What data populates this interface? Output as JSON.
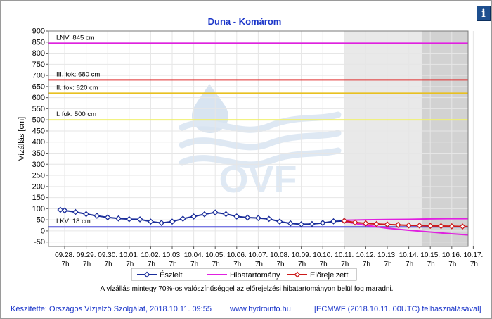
{
  "info_icon": "info-icon",
  "note": "A vízállás mintegy 70%-os valószínűséggel az előrejelzési hibatartományon belül fog maradni.",
  "footer": {
    "author": "Készítette: Országos Vízjelző Szolgálat, 2018.10.11. 09:55",
    "url": "www.hydroinfo.hu",
    "model": "[ECMWF (2018.10.11. 00UTC) felhasználásával]"
  },
  "watermark": "OVF",
  "chart_data": {
    "type": "line",
    "title": "Duna - Komárom",
    "ylabel": "Vízállás [cm]",
    "xlabel": "",
    "ylim": [
      -70,
      900
    ],
    "yticks": [
      -50,
      0,
      50,
      100,
      150,
      200,
      250,
      300,
      350,
      400,
      450,
      500,
      550,
      600,
      650,
      700,
      750,
      800,
      850,
      900
    ],
    "x_ticks": [
      {
        "date": "09.28.",
        "time": "7h"
      },
      {
        "date": "09.29.",
        "time": "7h"
      },
      {
        "date": "09.30.",
        "time": "7h"
      },
      {
        "date": "10.01.",
        "time": "7h"
      },
      {
        "date": "10.02.",
        "time": "7h"
      },
      {
        "date": "10.03.",
        "time": "7h"
      },
      {
        "date": "10.04.",
        "time": "7h"
      },
      {
        "date": "10.05.",
        "time": "7h"
      },
      {
        "date": "10.06.",
        "time": "7h"
      },
      {
        "date": "10.07.",
        "time": "7h"
      },
      {
        "date": "10.08.",
        "time": "7h"
      },
      {
        "date": "10.09.",
        "time": "7h"
      },
      {
        "date": "10.10.",
        "time": "7h"
      },
      {
        "date": "10.11.",
        "time": "7h"
      },
      {
        "date": "10.12.",
        "time": "7h"
      },
      {
        "date": "10.13.",
        "time": "7h"
      },
      {
        "date": "10.14.",
        "time": "7h"
      },
      {
        "date": "10.15.",
        "time": "7h"
      },
      {
        "date": "10.16.",
        "time": "7h"
      },
      {
        "date": "10.17.",
        "time": "7h"
      }
    ],
    "thresholds": [
      {
        "label": "LNV: 845 cm",
        "value": 845,
        "color": "#e020e0"
      },
      {
        "label": "III. fok: 680 cm",
        "value": 680,
        "color": "#e03030"
      },
      {
        "label": "II. fok: 620 cm",
        "value": 620,
        "color": "#e8c020"
      },
      {
        "label": "I. fok: 500 cm",
        "value": 500,
        "color": "#f0f070"
      },
      {
        "label": "LKV: 18 cm",
        "value": 18,
        "color": "#4a4ad8"
      }
    ],
    "forecast_region_start": 13.0,
    "forecast_dark_start": 16.6,
    "series": [
      {
        "name": "Észlelt",
        "color": "#1a2d9a",
        "points": [
          [
            -0.2,
            95
          ],
          [
            0.0,
            92
          ],
          [
            0.5,
            85
          ],
          [
            1.0,
            76
          ],
          [
            1.5,
            68
          ],
          [
            2.0,
            61
          ],
          [
            2.5,
            56
          ],
          [
            3.0,
            53
          ],
          [
            3.5,
            52
          ],
          [
            4.0,
            42
          ],
          [
            4.5,
            36
          ],
          [
            5.0,
            42
          ],
          [
            5.5,
            55
          ],
          [
            6.0,
            65
          ],
          [
            6.5,
            75
          ],
          [
            7.0,
            83
          ],
          [
            7.5,
            76
          ],
          [
            8.0,
            65
          ],
          [
            8.5,
            60
          ],
          [
            9.0,
            58
          ],
          [
            9.5,
            54
          ],
          [
            10.0,
            42
          ],
          [
            10.5,
            34
          ],
          [
            11.0,
            30
          ],
          [
            11.5,
            31
          ],
          [
            12.0,
            36
          ],
          [
            12.5,
            43
          ],
          [
            13.0,
            45
          ]
        ]
      },
      {
        "name": "Hibatartomány",
        "color": "#e020e0",
        "upper": [
          [
            13.0,
            48
          ],
          [
            14.0,
            50
          ],
          [
            15.0,
            51
          ],
          [
            16.0,
            52
          ],
          [
            17.0,
            54
          ],
          [
            18.0,
            55
          ],
          [
            19.0,
            55
          ]
        ],
        "lower": [
          [
            13.0,
            42
          ],
          [
            14.0,
            25
          ],
          [
            15.0,
            12
          ],
          [
            16.0,
            3
          ],
          [
            17.0,
            -5
          ],
          [
            18.0,
            -13
          ],
          [
            19.0,
            -20
          ]
        ]
      },
      {
        "name": "Előrejelzett",
        "color": "#cc1a1a",
        "points": [
          [
            13.0,
            45
          ],
          [
            13.5,
            38
          ],
          [
            14.0,
            34
          ],
          [
            14.5,
            31
          ],
          [
            15.0,
            29
          ],
          [
            15.5,
            27
          ],
          [
            16.0,
            25
          ],
          [
            16.5,
            24
          ],
          [
            17.0,
            23
          ],
          [
            17.5,
            22
          ],
          [
            18.0,
            21
          ],
          [
            18.5,
            20
          ],
          [
            19.0,
            19
          ]
        ]
      }
    ]
  }
}
